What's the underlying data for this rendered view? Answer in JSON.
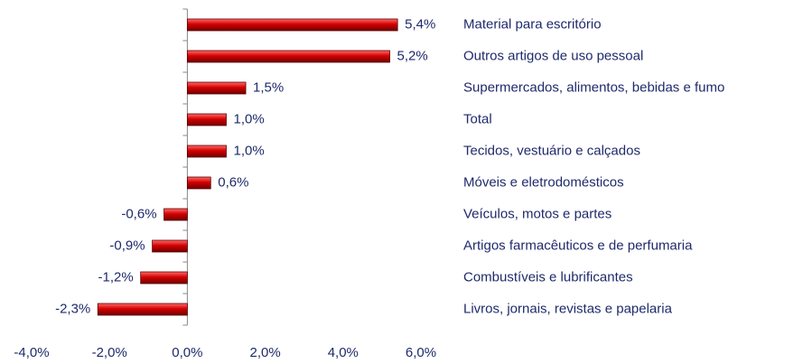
{
  "chart_data": {
    "type": "barh",
    "categories": [
      "Material para escritório",
      "Outros artigos de uso pessoal",
      "Supermercados, alimentos, bebidas e fumo",
      "Total",
      "Tecidos, vestuário e calçados",
      "Móveis e eletrodomésticos",
      "Veículos, motos e partes",
      "Artigos farmacêuticos e de perfumaria",
      "Combustíveis e lubrificantes",
      "Livros, jornais, revistas e papelaria"
    ],
    "values": [
      5.4,
      5.2,
      1.5,
      1.0,
      1.0,
      0.6,
      -0.6,
      -0.9,
      -1.2,
      -2.3
    ],
    "value_labels": [
      "5,4%",
      "5,2%",
      "1,5%",
      "1,0%",
      "1,0%",
      "0,6%",
      "-0,6%",
      "-0,9%",
      "-1,2%",
      "-2,3%"
    ],
    "color": "#c00000",
    "xlim": [
      -4,
      6
    ],
    "xticks": [
      {
        "value": -4,
        "label": "-4,0%"
      },
      {
        "value": -2,
        "label": "-2,0%"
      },
      {
        "value": 0,
        "label": "0,0%"
      },
      {
        "value": 2,
        "label": "2,0%"
      },
      {
        "value": 4,
        "label": "4,0%"
      },
      {
        "value": 6,
        "label": "6,0%"
      }
    ],
    "grid": false
  }
}
